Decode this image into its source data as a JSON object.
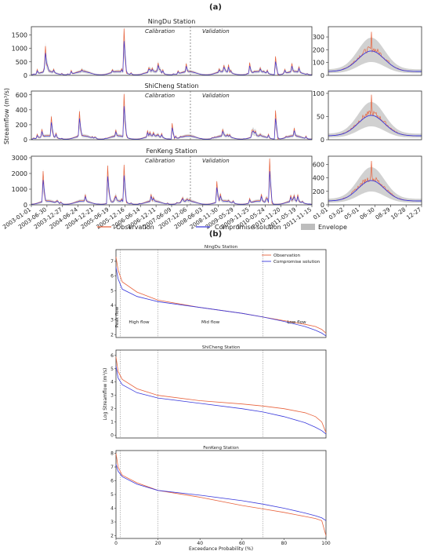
{
  "figure": {
    "label_a": "(a)",
    "label_b": "(b)"
  },
  "chart_data": [
    {
      "type": "line",
      "panel": "a",
      "title": "NingDu Station",
      "ylabel": "Streamflow (m³/s)",
      "ylim": [
        0,
        1800
      ],
      "yticks": [
        0,
        500,
        1000,
        1500
      ],
      "annotations": [
        "Calibration",
        "Validation"
      ],
      "series": [
        {
          "name": "Observation",
          "color": "#e8623c",
          "peaks": [
            {
              "x": 0.05,
              "v": 1080
            },
            {
              "x": 0.33,
              "v": 1730
            },
            {
              "x": 0.45,
              "v": 460
            },
            {
              "x": 0.87,
              "v": 700
            },
            {
              "x": 0.78,
              "v": 470
            }
          ]
        },
        {
          "name": "Compromise solution",
          "color": "#3a3adc"
        }
      ],
      "inset": {
        "ylim": [
          0,
          380
        ],
        "yticks": [
          0,
          100,
          200,
          300
        ],
        "peak": 340
      }
    },
    {
      "type": "line",
      "panel": "a",
      "title": "ShiCheng Station",
      "ylim": [
        0,
        650
      ],
      "yticks": [
        0,
        200,
        400,
        600
      ],
      "annotations": [
        "Calibration",
        "Validation"
      ],
      "series": [
        {
          "name": "Observation",
          "color": "#e8623c",
          "peaks": [
            {
              "x": 0.07,
              "v": 310
            },
            {
              "x": 0.33,
              "v": 610
            },
            {
              "x": 0.17,
              "v": 380
            },
            {
              "x": 0.87,
              "v": 390
            },
            {
              "x": 0.5,
              "v": 220
            }
          ]
        },
        {
          "name": "Compromise solution",
          "color": "#3a3adc"
        }
      ],
      "inset": {
        "ylim": [
          0,
          105
        ],
        "yticks": [
          0,
          50,
          100
        ],
        "peak": 97
      }
    },
    {
      "type": "line",
      "panel": "a",
      "title": "FenKeng Station",
      "ylim": [
        0,
        3100
      ],
      "yticks": [
        0,
        1000,
        2000,
        3000
      ],
      "annotations": [
        "Calibration",
        "Validation"
      ],
      "series": [
        {
          "name": "Observation",
          "color": "#e8623c",
          "peaks": [
            {
              "x": 0.04,
              "v": 2150
            },
            {
              "x": 0.27,
              "v": 2500
            },
            {
              "x": 0.33,
              "v": 2550
            },
            {
              "x": 0.85,
              "v": 2950
            },
            {
              "x": 0.66,
              "v": 1500
            }
          ]
        },
        {
          "name": "Compromise solution",
          "color": "#3a3adc"
        }
      ],
      "inset": {
        "ylim": [
          0,
          720
        ],
        "yticks": [
          0,
          200,
          400,
          600
        ],
        "peak": 650
      }
    },
    {
      "type": "line",
      "panel": "b",
      "title": "NingDu Station",
      "xlim": [
        0,
        100
      ],
      "ylim": [
        1.8,
        7.8
      ],
      "yticks": [
        2,
        3,
        4,
        5,
        6,
        7
      ],
      "regions": [
        "Peak flow",
        "High flow",
        "Mid flow",
        "Low flow"
      ],
      "legend": [
        "Observation",
        "Compromise solution"
      ],
      "series": [
        {
          "name": "Observation",
          "x": [
            0,
            1,
            3,
            10,
            20,
            40,
            60,
            70,
            80,
            90,
            95,
            98,
            100
          ],
          "y": [
            7.3,
            6.4,
            5.6,
            4.9,
            4.35,
            3.85,
            3.45,
            3.2,
            2.95,
            2.7,
            2.55,
            2.35,
            2.1
          ]
        },
        {
          "name": "Compromise solution",
          "x": [
            0,
            1,
            3,
            10,
            20,
            40,
            60,
            70,
            80,
            90,
            95,
            98,
            100
          ],
          "y": [
            6.6,
            5.8,
            5.1,
            4.6,
            4.25,
            3.85,
            3.45,
            3.2,
            2.9,
            2.55,
            2.3,
            2.1,
            1.9
          ]
        }
      ]
    },
    {
      "type": "line",
      "panel": "b",
      "title": "ShiCheng Station",
      "ylabel": "Log Streamflow (m³/s)",
      "xlim": [
        0,
        100
      ],
      "ylim": [
        -0.2,
        6.4
      ],
      "yticks": [
        0,
        1,
        2,
        3,
        4,
        5,
        6
      ],
      "series": [
        {
          "name": "Observation",
          "x": [
            0,
            1,
            3,
            10,
            20,
            40,
            60,
            70,
            80,
            90,
            95,
            98,
            100
          ],
          "y": [
            5.9,
            4.8,
            4.2,
            3.5,
            3.0,
            2.6,
            2.35,
            2.2,
            2.0,
            1.7,
            1.4,
            1.0,
            0.2
          ]
        },
        {
          "name": "Compromise solution",
          "x": [
            0,
            1,
            3,
            10,
            20,
            40,
            60,
            70,
            80,
            90,
            95,
            98,
            100
          ],
          "y": [
            5.2,
            4.3,
            3.8,
            3.2,
            2.8,
            2.4,
            2.0,
            1.75,
            1.4,
            0.95,
            0.6,
            0.35,
            0.1
          ]
        }
      ]
    },
    {
      "type": "line",
      "panel": "b",
      "title": "FenKeng Station",
      "xlabel": "Exceedance Probability (%)",
      "xlim": [
        0,
        100
      ],
      "ylim": [
        1.8,
        8.2
      ],
      "yticks": [
        2,
        3,
        4,
        5,
        6,
        7,
        8
      ],
      "xticks": [
        0,
        20,
        40,
        60,
        80,
        100
      ],
      "series": [
        {
          "name": "Observation",
          "x": [
            0,
            1,
            3,
            10,
            20,
            40,
            60,
            70,
            80,
            90,
            95,
            98,
            100
          ],
          "y": [
            8.0,
            7.0,
            6.4,
            5.85,
            5.3,
            4.8,
            4.2,
            3.95,
            3.7,
            3.4,
            3.25,
            3.1,
            2.0
          ]
        },
        {
          "name": "Compromise solution",
          "x": [
            0,
            1,
            3,
            10,
            20,
            40,
            60,
            70,
            80,
            90,
            95,
            98,
            100
          ],
          "y": [
            7.2,
            6.7,
            6.3,
            5.75,
            5.3,
            4.95,
            4.55,
            4.3,
            4.0,
            3.65,
            3.45,
            3.3,
            3.1
          ]
        }
      ]
    }
  ],
  "timeseries_dates": [
    "2003-01-01",
    "2003-06-30",
    "2003-12-27",
    "2004-06-24",
    "2004-12-21",
    "2005-06-19",
    "2005-12-16",
    "2006-06-14",
    "2006-12-11",
    "2007-06-09",
    "2007-12-06",
    "2008-06-03",
    "2008-11-30",
    "2009-05-29",
    "2009-11-25",
    "2010-05-24",
    "2010-11-20",
    "2011-05-19",
    "2011-11-15"
  ],
  "inset_dates": [
    "01-01",
    "03-02",
    "05-01",
    "06-30",
    "08-29",
    "10-28",
    "12-27"
  ],
  "legend_a": [
    {
      "label": "Observation",
      "color": "#e8623c",
      "kind": "line"
    },
    {
      "label": "Compromise solution",
      "color": "#3a3adc",
      "kind": "line"
    },
    {
      "label": "Envelope",
      "color": "#bdbdbd",
      "kind": "patch"
    }
  ]
}
